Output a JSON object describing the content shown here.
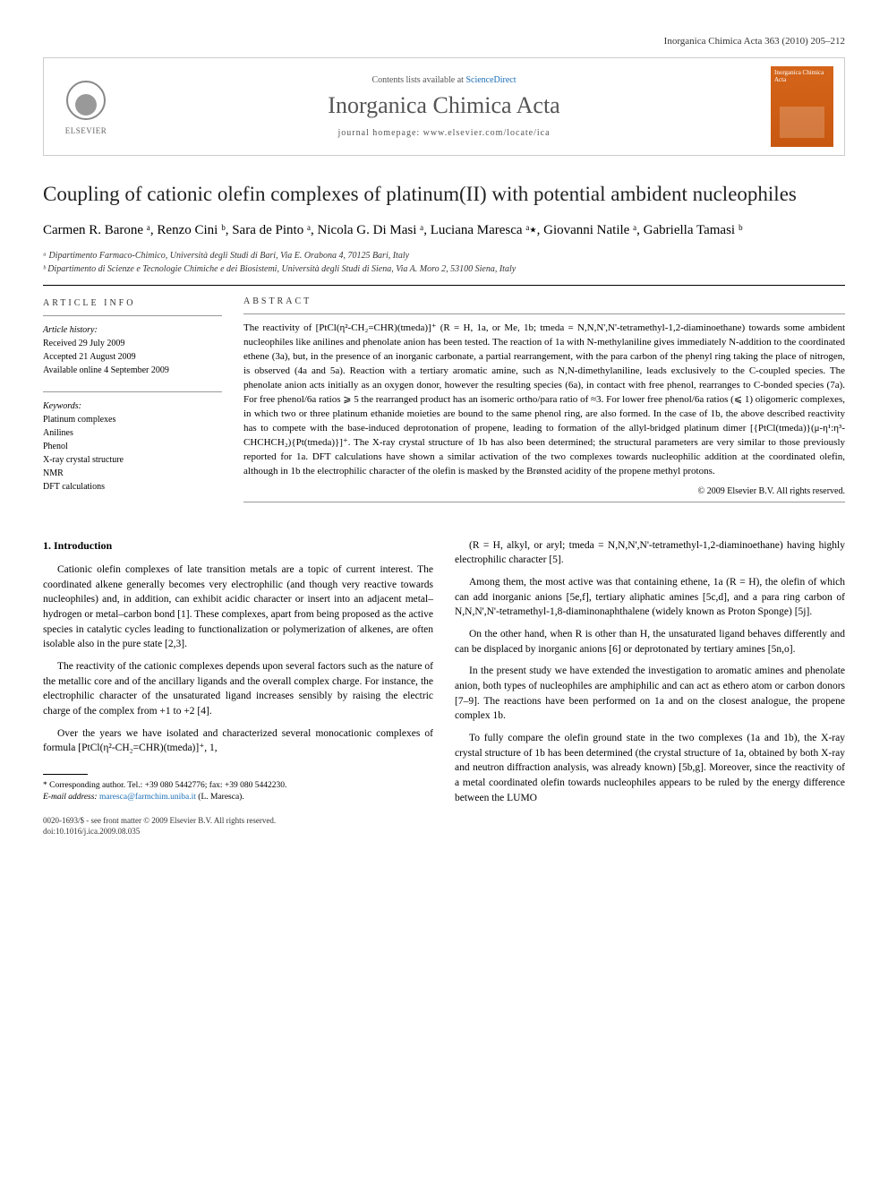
{
  "running_header": "Inorganica Chimica Acta 363 (2010) 205–212",
  "banner": {
    "contents_prefix": "Contents lists available at ",
    "contents_link": "ScienceDirect",
    "journal_title": "Inorganica Chimica Acta",
    "homepage_prefix": "journal homepage: ",
    "homepage_url": "www.elsevier.com/locate/ica",
    "publisher": "ELSEVIER",
    "cover_label": "Inorganica Chimica Acta"
  },
  "article": {
    "title": "Coupling of cationic olefin complexes of platinum(II) with potential ambident nucleophiles",
    "authors_html": "Carmen R. Barone ᵃ, Renzo Cini ᵇ, Sara de Pinto ᵃ, Nicola G. Di Masi ᵃ, Luciana Maresca ᵃ٭, Giovanni Natile ᵃ, Gabriella Tamasi ᵇ",
    "affiliations": {
      "a": "ᵃ Dipartimento Farmaco-Chimico, Università degli Studi di Bari, Via E. Orabona 4, 70125 Bari, Italy",
      "b": "ᵇ Dipartimento di Scienze e Tecnologie Chimiche e dei Biosistemi, Università degli Studi di Siena, Via A. Moro 2, 53100 Siena, Italy"
    }
  },
  "article_info": {
    "heading": "ARTICLE INFO",
    "history_label": "Article history:",
    "received": "Received 29 July 2009",
    "accepted": "Accepted 21 August 2009",
    "online": "Available online 4 September 2009",
    "keywords_label": "Keywords:",
    "keywords": [
      "Platinum complexes",
      "Anilines",
      "Phenol",
      "X-ray crystal structure",
      "NMR",
      "DFT calculations"
    ]
  },
  "abstract": {
    "heading": "ABSTRACT",
    "text": "The reactivity of [PtCl(η²-CH₂=CHR)(tmeda)]⁺ (R = H, 1a, or Me, 1b; tmeda = N,N,N',N'-tetramethyl-1,2-diaminoethane) towards some ambident nucleophiles like anilines and phenolate anion has been tested. The reaction of 1a with N-methylaniline gives immediately N-addition to the coordinated ethene (3a), but, in the presence of an inorganic carbonate, a partial rearrangement, with the para carbon of the phenyl ring taking the place of nitrogen, is observed (4a and 5a). Reaction with a tertiary aromatic amine, such as N,N-dimethylaniline, leads exclusively to the C-coupled species. The phenolate anion acts initially as an oxygen donor, however the resulting species (6a), in contact with free phenol, rearranges to C-bonded species (7a). For free phenol/6a ratios ⩾ 5 the rearranged product has an isomeric ortho/para ratio of ≈3. For lower free phenol/6a ratios (⩽ 1) oligomeric complexes, in which two or three platinum ethanide moieties are bound to the same phenol ring, are also formed. In the case of 1b, the above described reactivity has to compete with the base-induced deprotonation of propene, leading to formation of the allyl-bridged platinum dimer [{PtCl(tmeda)}(μ-η¹:η³-CHCHCH₂){Pt(tmeda)}]⁺. The X-ray crystal structure of 1b has also been determined; the structural parameters are very similar to those previously reported for 1a. DFT calculations have shown a similar activation of the two complexes towards nucleophilic addition at the coordinated olefin, although in 1b the electrophilic character of the olefin is masked by the Brønsted acidity of the propene methyl protons.",
    "copyright": "© 2009 Elsevier B.V. All rights reserved."
  },
  "body": {
    "section_heading": "1. Introduction",
    "left_paragraphs": [
      "Cationic olefin complexes of late transition metals are a topic of current interest. The coordinated alkene generally becomes very electrophilic (and though very reactive towards nucleophiles) and, in addition, can exhibit acidic character or insert into an adjacent metal–hydrogen or metal–carbon bond [1]. These complexes, apart from being proposed as the active species in catalytic cycles leading to functionalization or polymerization of alkenes, are often isolable also in the pure state [2,3].",
      "The reactivity of the cationic complexes depends upon several factors such as the nature of the metallic core and of the ancillary ligands and the overall complex charge. For instance, the electrophilic character of the unsaturated ligand increases sensibly by raising the electric charge of the complex from +1 to +2 [4].",
      "Over the years we have isolated and characterized several monocationic complexes of formula [PtCl(η²-CH₂=CHR)(tmeda)]⁺, 1,"
    ],
    "right_paragraphs": [
      "(R = H, alkyl, or aryl; tmeda = N,N,N',N'-tetramethyl-1,2-diaminoethane) having highly electrophilic character [5].",
      "Among them, the most active was that containing ethene, 1a (R = H), the olefin of which can add inorganic anions [5e,f], tertiary aliphatic amines [5c,d], and a para ring carbon of N,N,N',N'-tetramethyl-1,8-diaminonaphthalene (widely known as Proton Sponge) [5j].",
      "On the other hand, when R is other than H, the unsaturated ligand behaves differently and can be displaced by inorganic anions [6] or deprotonated by tertiary amines [5n,o].",
      "In the present study we have extended the investigation to aromatic amines and phenolate anion, both types of nucleophiles are amphiphilic and can act as ethero atom or carbon donors [7–9]. The reactions have been performed on 1a and on the closest analogue, the propene complex 1b.",
      "To fully compare the olefin ground state in the two complexes (1a and 1b), the X-ray crystal structure of 1b has been determined (the crystal structure of 1a, obtained by both X-ray and neutron diffraction analysis, was already known) [5b,g]. Moreover, since the reactivity of a metal coordinated olefin towards nucleophiles appears to be ruled by the energy difference between the LUMO"
    ]
  },
  "footnotes": {
    "corresponding": "* Corresponding author. Tel.: +39 080 5442776; fax: +39 080 5442230.",
    "email_label": "E-mail address:",
    "email": "maresca@farmchim.uniba.it",
    "email_person": "(L. Maresca)."
  },
  "footer": {
    "line1": "0020-1693/$ - see front matter © 2009 Elsevier B.V. All rights reserved.",
    "line2": "doi:10.1016/j.ica.2009.08.035"
  },
  "colors": {
    "link": "#1a6db5",
    "cover_bg": "#d4651a",
    "text": "#000000",
    "muted": "#555555"
  }
}
